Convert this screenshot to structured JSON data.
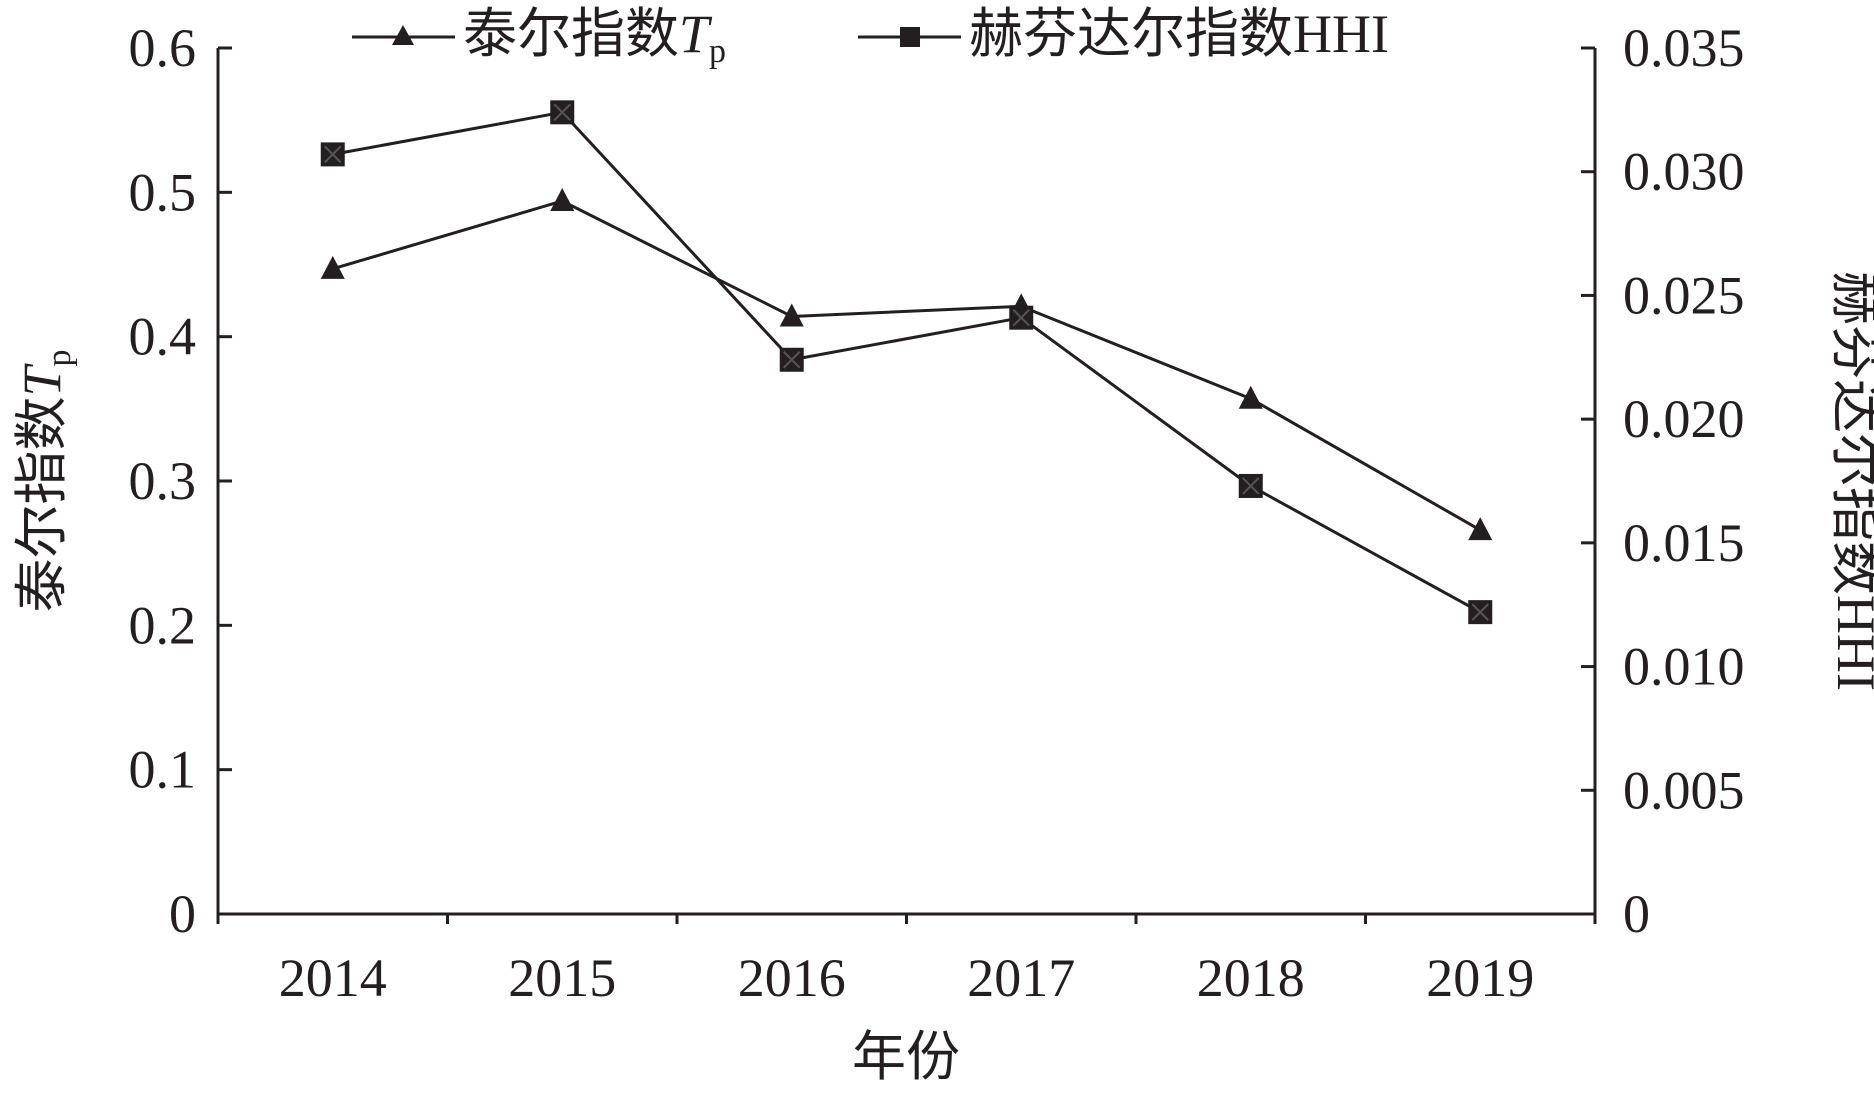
{
  "chart_data": {
    "type": "line",
    "categories": [
      "2014",
      "2015",
      "2016",
      "2017",
      "2018",
      "2019"
    ],
    "xlabel": "年份",
    "ylabel_left": "泰尔指数",
    "ylabel_left_italic": "T",
    "ylabel_left_sub": "p",
    "ylabel_right": "赫芬达尔指数HHI",
    "ylim_left": [
      0,
      0.6
    ],
    "ylim_right": [
      0,
      0.035
    ],
    "yticks_left": [
      "0",
      "0.1",
      "0.2",
      "0.3",
      "0.4",
      "0.5",
      "0.6"
    ],
    "yticks_right": [
      "0",
      "0.005",
      "0.010",
      "0.015",
      "0.020",
      "0.025",
      "0.030",
      "0.035"
    ],
    "grid": false,
    "legend_position": "top",
    "series": [
      {
        "name": "泰尔指数",
        "name_italic": "T",
        "name_sub": "p",
        "axis": "left",
        "marker": "triangle",
        "values": [
          0.447,
          0.494,
          0.414,
          0.421,
          0.357,
          0.266
        ]
      },
      {
        "name": "赫芬达尔指数HHI",
        "axis": "right",
        "marker": "square",
        "values": [
          0.0307,
          0.0324,
          0.0224,
          0.0241,
          0.0173,
          0.0122
        ]
      }
    ],
    "colors": {
      "ink": "#231f20",
      "background": "#ffffff"
    }
  }
}
